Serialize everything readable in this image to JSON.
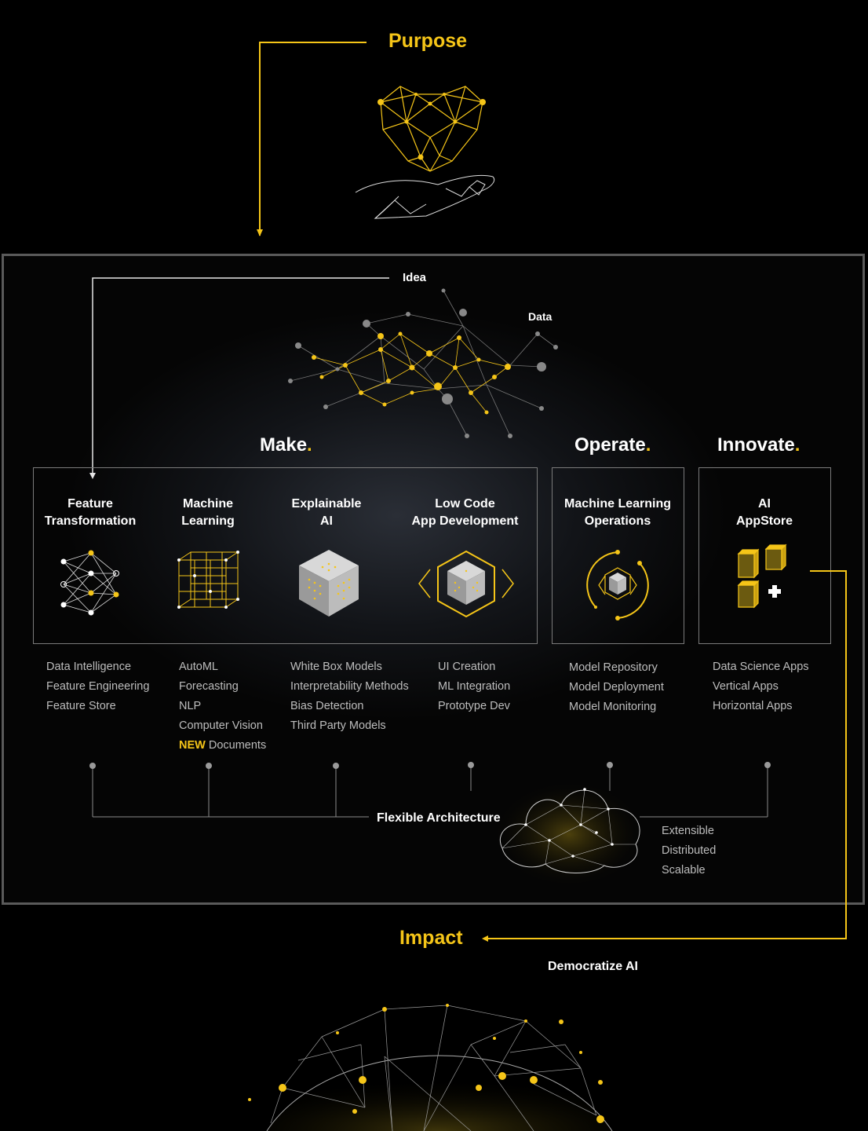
{
  "purpose": {
    "title": "Purpose"
  },
  "idea_label": "Idea",
  "data_label": "Data",
  "sections": {
    "make": {
      "title": "Make",
      "dot": "."
    },
    "operate": {
      "title": "Operate",
      "dot": "."
    },
    "innovate": {
      "title": "Innovate",
      "dot": "."
    }
  },
  "cards": [
    {
      "line1": "Feature",
      "line2": "Transformation",
      "icon": "neural-network-icon",
      "items": [
        "Data Intelligence",
        "Feature Engineering",
        "Feature Store"
      ]
    },
    {
      "line1": "Machine",
      "line2": "Learning",
      "icon": "wireframe-cube-icon",
      "items": [
        "AutoML",
        "Forecasting",
        "NLP",
        "Computer Vision"
      ],
      "new_badge": "NEW",
      "new_item": " Documents"
    },
    {
      "line1": "Explainable",
      "line2": "AI",
      "icon": "glass-cube-icon",
      "items": [
        "White Box Models",
        "Interpretability Methods",
        "Bias Detection",
        "Third Party Models"
      ]
    },
    {
      "line1": "Low Code",
      "line2": "App Development",
      "icon": "code-cube-icon",
      "items": [
        "UI Creation",
        "ML Integration",
        "Prototype Dev"
      ]
    },
    {
      "line1": "Machine Learning",
      "line2": "Operations",
      "icon": "ops-cycle-icon",
      "items": [
        "Model Repository",
        "Model Deployment",
        "Model Monitoring"
      ]
    },
    {
      "line1": "AI",
      "line2": "AppStore",
      "icon": "appstore-blocks-icon",
      "items": [
        "Data Science Apps",
        "Vertical Apps",
        "Horizontal Apps"
      ]
    }
  ],
  "architecture": {
    "title": "Flexible Architecture",
    "items": [
      "Extensible",
      "Distributed",
      "Scalable"
    ]
  },
  "impact": {
    "title": "Impact",
    "subtitle": "Democratize AI"
  },
  "colors": {
    "accent": "#f5c518",
    "frame": "#5a5a5a",
    "box_border": "#7a7a7a",
    "text_muted": "#bdbdbd"
  }
}
